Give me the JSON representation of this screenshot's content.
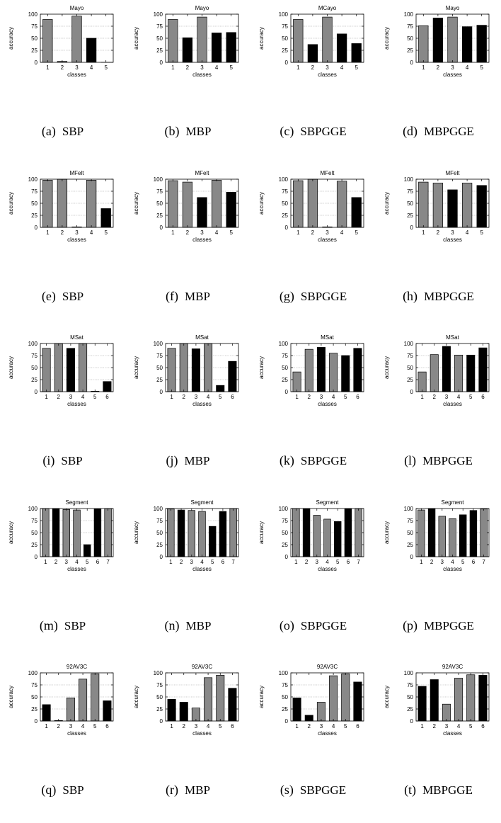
{
  "figure": {
    "colors": {
      "gray": "#888888",
      "black": "#000000",
      "grid": "#999999"
    },
    "ylabel": "accuracy",
    "xlabel": "classes"
  },
  "chart_data": [
    {
      "type": "bar",
      "title": "Mayo",
      "caption_label": "(a)",
      "caption_name": "SBP",
      "categories": [
        "1",
        "2",
        "3",
        "4",
        "5"
      ],
      "values": [
        89,
        2,
        96,
        50,
        0
      ],
      "colors": [
        "gray",
        "gray",
        "gray",
        "black",
        "black"
      ],
      "xlabel": "classes",
      "ylabel": "accuracy",
      "ylim": [
        0,
        100
      ],
      "yticks": [
        0,
        25,
        50,
        75,
        100
      ],
      "grid": true
    },
    {
      "type": "bar",
      "title": "Mayo",
      "caption_label": "(b)",
      "caption_name": "MBP",
      "categories": [
        "1",
        "2",
        "3",
        "4",
        "5"
      ],
      "values": [
        89,
        51,
        94,
        61,
        62
      ],
      "colors": [
        "gray",
        "black",
        "gray",
        "black",
        "black"
      ],
      "xlabel": "classes",
      "ylabel": "accuracy",
      "ylim": [
        0,
        100
      ],
      "yticks": [
        0,
        25,
        50,
        75,
        100
      ],
      "grid": true
    },
    {
      "type": "bar",
      "title": "MCayo",
      "caption_label": "(c)",
      "caption_name": "SBPGGE",
      "categories": [
        "1",
        "2",
        "3",
        "4",
        "5"
      ],
      "values": [
        89,
        37,
        94,
        59,
        39
      ],
      "colors": [
        "gray",
        "black",
        "gray",
        "black",
        "black"
      ],
      "xlabel": "classes",
      "ylabel": "accuracy",
      "ylim": [
        0,
        100
      ],
      "yticks": [
        0,
        25,
        50,
        75,
        100
      ],
      "grid": true
    },
    {
      "type": "bar",
      "title": "Mayo",
      "caption_label": "(d)",
      "caption_name": "MBPGGE",
      "categories": [
        "1",
        "2",
        "3",
        "4",
        "5"
      ],
      "values": [
        76,
        92,
        94,
        74,
        77
      ],
      "colors": [
        "gray",
        "black",
        "gray",
        "black",
        "black"
      ],
      "xlabel": "classes",
      "ylabel": "accuracy",
      "ylim": [
        0,
        100
      ],
      "yticks": [
        0,
        25,
        50,
        75,
        100
      ],
      "grid": true
    },
    {
      "type": "bar",
      "title": "MFelt",
      "caption_label": "(e)",
      "caption_name": "SBP",
      "categories": [
        "1",
        "2",
        "3",
        "4",
        "5"
      ],
      "values": [
        98,
        100,
        1,
        98,
        39
      ],
      "colors": [
        "gray",
        "gray",
        "black",
        "gray",
        "black"
      ],
      "xlabel": "classes",
      "ylabel": "accuracy",
      "ylim": [
        0,
        100
      ],
      "yticks": [
        0,
        25,
        50,
        75,
        100
      ],
      "grid": true
    },
    {
      "type": "bar",
      "title": "MFelt",
      "caption_label": "(f)",
      "caption_name": "MBP",
      "categories": [
        "1",
        "2",
        "3",
        "4",
        "5"
      ],
      "values": [
        97,
        94,
        62,
        98,
        73
      ],
      "colors": [
        "gray",
        "gray",
        "black",
        "gray",
        "black"
      ],
      "xlabel": "classes",
      "ylabel": "accuracy",
      "ylim": [
        0,
        100
      ],
      "yticks": [
        0,
        25,
        50,
        75,
        100
      ],
      "grid": true
    },
    {
      "type": "bar",
      "title": "MFelt",
      "caption_label": "(g)",
      "caption_name": "SBPGGE",
      "categories": [
        "1",
        "2",
        "3",
        "4",
        "5"
      ],
      "values": [
        97,
        100,
        1,
        96,
        62
      ],
      "colors": [
        "gray",
        "gray",
        "black",
        "gray",
        "black"
      ],
      "xlabel": "classes",
      "ylabel": "accuracy",
      "ylim": [
        0,
        100
      ],
      "yticks": [
        0,
        25,
        50,
        75,
        100
      ],
      "grid": true
    },
    {
      "type": "bar",
      "title": "MFelt",
      "caption_label": "(h)",
      "caption_name": "MBPGGE",
      "categories": [
        "1",
        "2",
        "3",
        "4",
        "5"
      ],
      "values": [
        94,
        92,
        78,
        92,
        87
      ],
      "colors": [
        "gray",
        "gray",
        "black",
        "gray",
        "black"
      ],
      "xlabel": "classes",
      "ylabel": "accuracy",
      "ylim": [
        0,
        100
      ],
      "yticks": [
        0,
        25,
        50,
        75,
        100
      ],
      "grid": true
    },
    {
      "type": "bar",
      "title": "MSat",
      "caption_label": "(i)",
      "caption_name": "SBP",
      "categories": [
        "1",
        "2",
        "3",
        "4",
        "5",
        "6"
      ],
      "values": [
        90,
        100,
        90,
        100,
        1,
        21
      ],
      "colors": [
        "gray",
        "gray",
        "black",
        "gray",
        "black",
        "black"
      ],
      "xlabel": "classes",
      "ylabel": "accuracy",
      "ylim": [
        0,
        100
      ],
      "yticks": [
        0,
        25,
        50,
        75,
        100
      ],
      "grid": true
    },
    {
      "type": "bar",
      "title": "MSat",
      "caption_label": "(j)",
      "caption_name": "MBP",
      "categories": [
        "1",
        "2",
        "3",
        "4",
        "5",
        "6"
      ],
      "values": [
        90,
        100,
        89,
        100,
        13,
        63
      ],
      "colors": [
        "gray",
        "gray",
        "black",
        "gray",
        "black",
        "black"
      ],
      "xlabel": "classes",
      "ylabel": "accuracy",
      "ylim": [
        0,
        100
      ],
      "yticks": [
        0,
        25,
        50,
        75,
        100
      ],
      "grid": true
    },
    {
      "type": "bar",
      "title": "MSat",
      "caption_label": "(k)",
      "caption_name": "SBPGGE",
      "categories": [
        "1",
        "2",
        "3",
        "4",
        "5",
        "6"
      ],
      "values": [
        41,
        88,
        92,
        80,
        75,
        90
      ],
      "colors": [
        "gray",
        "gray",
        "black",
        "gray",
        "black",
        "black"
      ],
      "xlabel": "classes",
      "ylabel": "accuracy",
      "ylim": [
        0,
        100
      ],
      "yticks": [
        0,
        25,
        50,
        75,
        100
      ],
      "grid": true
    },
    {
      "type": "bar",
      "title": "MSat",
      "caption_label": "(l)",
      "caption_name": "MBPGGE",
      "categories": [
        "1",
        "2",
        "3",
        "4",
        "5",
        "6"
      ],
      "values": [
        41,
        77,
        94,
        76,
        76,
        91
      ],
      "colors": [
        "gray",
        "gray",
        "black",
        "gray",
        "black",
        "black"
      ],
      "xlabel": "classes",
      "ylabel": "accuracy",
      "ylim": [
        0,
        100
      ],
      "yticks": [
        0,
        25,
        50,
        75,
        100
      ],
      "grid": true
    },
    {
      "type": "bar",
      "title": "Segment",
      "caption_label": "(m)",
      "caption_name": "SBP",
      "categories": [
        "1",
        "2",
        "3",
        "4",
        "5",
        "6",
        "7"
      ],
      "values": [
        100,
        100,
        98,
        97,
        25,
        99,
        100
      ],
      "colors": [
        "gray",
        "black",
        "gray",
        "gray",
        "black",
        "black",
        "gray"
      ],
      "xlabel": "classes",
      "ylabel": "accuracy",
      "ylim": [
        0,
        100
      ],
      "yticks": [
        0,
        25,
        50,
        75,
        100
      ],
      "grid": true
    },
    {
      "type": "bar",
      "title": "Segment",
      "caption_label": "(n)",
      "caption_name": "MBP",
      "categories": [
        "1",
        "2",
        "3",
        "4",
        "5",
        "6",
        "7"
      ],
      "values": [
        99,
        97,
        96,
        94,
        63,
        94,
        100
      ],
      "colors": [
        "gray",
        "black",
        "gray",
        "gray",
        "black",
        "black",
        "gray"
      ],
      "xlabel": "classes",
      "ylabel": "accuracy",
      "ylim": [
        0,
        100
      ],
      "yticks": [
        0,
        25,
        50,
        75,
        100
      ],
      "grid": true
    },
    {
      "type": "bar",
      "title": "Segment",
      "caption_label": "(o)",
      "caption_name": "SBPGGE",
      "categories": [
        "1",
        "2",
        "3",
        "4",
        "5",
        "6",
        "7"
      ],
      "values": [
        100,
        100,
        86,
        78,
        73,
        100,
        100
      ],
      "colors": [
        "gray",
        "black",
        "gray",
        "gray",
        "black",
        "black",
        "gray"
      ],
      "xlabel": "classes",
      "ylabel": "accuracy",
      "ylim": [
        0,
        100
      ],
      "yticks": [
        0,
        25,
        50,
        75,
        100
      ],
      "grid": true
    },
    {
      "type": "bar",
      "title": "Segment",
      "caption_label": "(p)",
      "caption_name": "MBPGGE",
      "categories": [
        "1",
        "2",
        "3",
        "4",
        "5",
        "6",
        "7"
      ],
      "values": [
        97,
        100,
        84,
        79,
        87,
        96,
        99
      ],
      "colors": [
        "gray",
        "black",
        "gray",
        "gray",
        "black",
        "black",
        "gray"
      ],
      "xlabel": "classes",
      "ylabel": "accuracy",
      "ylim": [
        0,
        100
      ],
      "yticks": [
        0,
        25,
        50,
        75,
        100
      ],
      "grid": true
    },
    {
      "type": "bar",
      "title": "92AV3C",
      "caption_label": "(q)",
      "caption_name": "SBP",
      "categories": [
        "1",
        "2",
        "3",
        "4",
        "5",
        "6"
      ],
      "values": [
        34,
        1,
        48,
        87,
        98,
        42
      ],
      "colors": [
        "black",
        "black",
        "gray",
        "gray",
        "gray",
        "black"
      ],
      "xlabel": "classes",
      "ylabel": "accuracy",
      "ylim": [
        0,
        100
      ],
      "yticks": [
        0,
        25,
        50,
        75,
        100
      ],
      "grid": true
    },
    {
      "type": "bar",
      "title": "92AV3C",
      "caption_label": "(r)",
      "caption_name": "MBP",
      "categories": [
        "1",
        "2",
        "3",
        "4",
        "5",
        "6"
      ],
      "values": [
        45,
        39,
        27,
        90,
        95,
        68
      ],
      "colors": [
        "black",
        "black",
        "gray",
        "gray",
        "gray",
        "black"
      ],
      "xlabel": "classes",
      "ylabel": "accuracy",
      "ylim": [
        0,
        100
      ],
      "yticks": [
        0,
        25,
        50,
        75,
        100
      ],
      "grid": true
    },
    {
      "type": "bar",
      "title": "92AV3C",
      "caption_label": "(s)",
      "caption_name": "SBPGGE",
      "categories": [
        "1",
        "2",
        "3",
        "4",
        "5",
        "6"
      ],
      "values": [
        48,
        12,
        39,
        94,
        98,
        81
      ],
      "colors": [
        "black",
        "black",
        "gray",
        "gray",
        "gray",
        "black"
      ],
      "xlabel": "classes",
      "ylabel": "accuracy",
      "ylim": [
        0,
        100
      ],
      "yticks": [
        0,
        25,
        50,
        75,
        100
      ],
      "grid": true
    },
    {
      "type": "bar",
      "title": "92AV3C",
      "caption_label": "(t)",
      "caption_name": "MBPGGE",
      "categories": [
        "1",
        "2",
        "3",
        "4",
        "5",
        "6"
      ],
      "values": [
        72,
        86,
        35,
        89,
        96,
        95
      ],
      "colors": [
        "black",
        "black",
        "gray",
        "gray",
        "gray",
        "black"
      ],
      "xlabel": "classes",
      "ylabel": "accuracy",
      "ylim": [
        0,
        100
      ],
      "yticks": [
        0,
        25,
        50,
        75,
        100
      ],
      "grid": true
    }
  ]
}
